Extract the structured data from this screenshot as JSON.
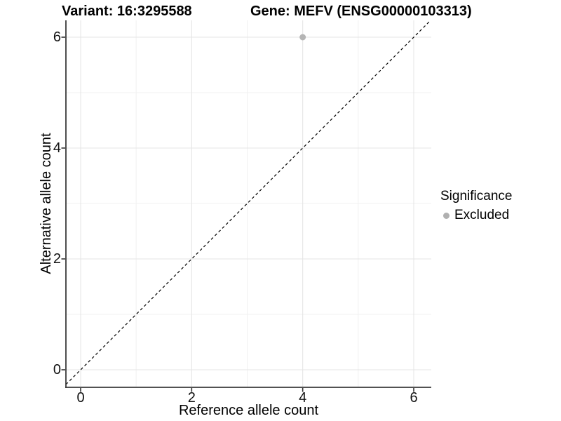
{
  "chart_data": {
    "type": "scatter",
    "title_left": "Variant: 16:3295588",
    "title_right": "Gene: MEFV (ENSG00000103313)",
    "xlabel": "Reference allele count",
    "ylabel": "Alternative allele count",
    "xlim": [
      -0.3,
      6.3
    ],
    "ylim": [
      -0.3,
      6.3
    ],
    "x_ticks": [
      0,
      2,
      4,
      6
    ],
    "y_ticks": [
      0,
      2,
      4,
      6
    ],
    "minor_gridlines_x": [
      1,
      3,
      5
    ],
    "minor_gridlines_y": [
      1,
      3,
      5
    ],
    "grid": "on",
    "legend_position": "right",
    "series": [
      {
        "name": "Excluded",
        "marker": "circle",
        "color": "#b5b5b5",
        "points": [
          {
            "x": 4,
            "y": 6
          }
        ]
      }
    ],
    "reference_line": {
      "kind": "identity",
      "equation": "y = x",
      "style": "dashed",
      "color": "#000000"
    },
    "legend": {
      "title": "Significance",
      "entries": [
        {
          "label": "Excluded",
          "marker": "circle",
          "color": "#b0b0b0"
        }
      ]
    },
    "colors": {
      "background": "#ffffff",
      "grid_major": "#e4e4e4",
      "grid_minor": "#f1f1f1",
      "axis_line": "#3a3a3a",
      "tick_mark": "#333333",
      "text": "#000000"
    }
  }
}
